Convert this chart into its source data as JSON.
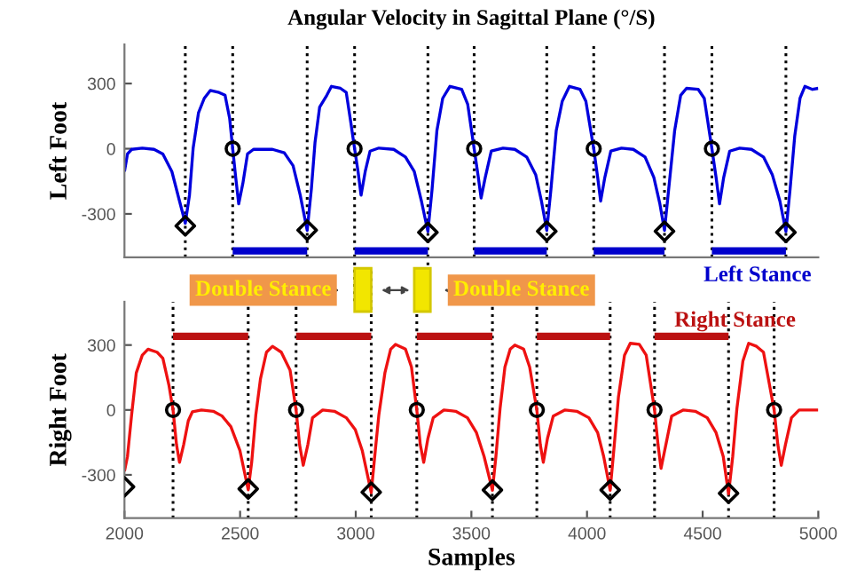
{
  "chart_data": [
    {
      "type": "line",
      "title": "Angular Velocity in Sagittal Plane (°/S)",
      "ylabel": "Left Foot",
      "xlim": [
        2000,
        5000
      ],
      "ylim": [
        -500,
        480
      ],
      "yticks": [
        -300,
        0,
        300
      ],
      "tick_labels": "y",
      "legend": false,
      "grid": false,
      "annotations": [
        "Double Stance",
        "Double Stance"
      ],
      "series": [
        {
          "type": "line",
          "color": "#0000dd",
          "x": [
            2000,
            2013,
            2031,
            2077,
            2128,
            2166,
            2205,
            2238,
            2263,
            2281,
            2297,
            2320,
            2345,
            2371,
            2409,
            2435,
            2455,
            2468,
            2481,
            2494,
            2512,
            2532,
            2558,
            2640,
            2691,
            2729,
            2760,
            2790,
            2808,
            2824,
            2844,
            2875,
            2895,
            2934,
            2959,
            2980,
            2995,
            3010,
            3023,
            3041,
            3062,
            3100,
            3164,
            3215,
            3253,
            3284,
            3312,
            3330,
            3351,
            3376,
            3407,
            3458,
            3484,
            3512,
            3530,
            3542,
            3560,
            3586,
            3637,
            3688,
            3739,
            3778,
            3803,
            3826,
            3844,
            3867,
            3893,
            3924,
            3970,
            3995,
            4029,
            4046,
            4059,
            4077,
            4103,
            4149,
            4200,
            4251,
            4289,
            4315,
            4335,
            4353,
            4379,
            4405,
            4430,
            4481,
            4507,
            4540,
            4558,
            4573,
            4591,
            4617,
            4660,
            4711,
            4763,
            4801,
            4834,
            4860,
            4878,
            4898,
            4921,
            4942,
            4975,
            5000
          ],
          "values": [
            -105,
            -24,
            -3,
            3,
            -3,
            -24,
            -105,
            -241,
            -343,
            -214,
            3,
            165,
            232,
            268,
            259,
            246,
            138,
            0,
            -132,
            -254,
            -159,
            -24,
            -3,
            -3,
            -19,
            -78,
            -214,
            -376,
            -187,
            30,
            192,
            246,
            287,
            278,
            259,
            111,
            0,
            -105,
            -214,
            -105,
            -11,
            3,
            -3,
            -38,
            -105,
            -241,
            -381,
            -187,
            84,
            232,
            287,
            273,
            205,
            0,
            -132,
            -227,
            -132,
            -11,
            3,
            -3,
            -38,
            -119,
            -241,
            -376,
            -187,
            84,
            219,
            287,
            273,
            219,
            0,
            -132,
            -241,
            -132,
            -11,
            3,
            -3,
            -38,
            -132,
            -254,
            -376,
            -187,
            84,
            246,
            278,
            273,
            232,
            0,
            -132,
            -254,
            -132,
            -11,
            3,
            -3,
            -38,
            -119,
            -241,
            -381,
            -187,
            57,
            232,
            287,
            273,
            278
          ]
        },
        {
          "type": "scatter",
          "marker": "diamond",
          "color": "#000000",
          "x": [
            2263,
            2790,
            3312,
            3826,
            4335,
            4860
          ],
          "values": [
            -355,
            -375,
            -385,
            -380,
            -380,
            -385
          ]
        },
        {
          "type": "scatter",
          "marker": "circle",
          "color": "#000000",
          "x": [
            2468,
            2995,
            3512,
            4029,
            4540
          ],
          "values": [
            0,
            0,
            0,
            0,
            0
          ]
        },
        {
          "type": "line",
          "name": "Left Stance",
          "color": "#0000cc",
          "x": [
            2468,
            2790,
            null,
            2995,
            3312,
            null,
            3512,
            3826,
            null,
            4029,
            4335,
            null,
            4540,
            4860
          ],
          "values": [
            -470,
            -470,
            null,
            -470,
            -470,
            null,
            -470,
            -470,
            null,
            -470,
            -470,
            null,
            -470,
            -470
          ]
        }
      ],
      "ref_lines": [
        {
          "axis": "x",
          "value": 2263,
          "color": "#000000",
          "line_style": "dotted"
        },
        {
          "axis": "x",
          "value": 2468,
          "color": "#000000",
          "line_style": "dotted"
        },
        {
          "axis": "x",
          "value": 2790,
          "color": "#000000",
          "line_style": "dotted"
        },
        {
          "axis": "x",
          "value": 2995,
          "color": "#000000",
          "line_style": "dotted"
        },
        {
          "axis": "x",
          "value": 3312,
          "color": "#000000",
          "line_style": "dotted"
        },
        {
          "axis": "x",
          "value": 3512,
          "color": "#000000",
          "line_style": "dotted"
        },
        {
          "axis": "x",
          "value": 3826,
          "color": "#000000",
          "line_style": "dotted"
        },
        {
          "axis": "x",
          "value": 4029,
          "color": "#000000",
          "line_style": "dotted"
        },
        {
          "axis": "x",
          "value": 4335,
          "color": "#000000",
          "line_style": "dotted"
        },
        {
          "axis": "x",
          "value": 4540,
          "color": "#000000",
          "line_style": "dotted"
        },
        {
          "axis": "x",
          "value": 4860,
          "color": "#000000",
          "line_style": "dotted"
        }
      ]
    },
    {
      "type": "line",
      "ylabel": "Right Foot",
      "xlabel": "Samples",
      "xlim": [
        2000,
        5000
      ],
      "xticks": [
        2000,
        2500,
        3000,
        3500,
        4000,
        4500,
        5000
      ],
      "ylim": [
        -500,
        500
      ],
      "yticks": [
        -300,
        0,
        300
      ],
      "legend": false,
      "grid": false,
      "series": [
        {
          "type": "line",
          "color": "#ee1111",
          "x": [
            2000,
            2013,
            2031,
            2051,
            2077,
            2102,
            2141,
            2166,
            2192,
            2210,
            2225,
            2238,
            2256,
            2276,
            2294,
            2333,
            2384,
            2422,
            2460,
            2499,
            2535,
            2550,
            2568,
            2588,
            2614,
            2640,
            2678,
            2716,
            2742,
            2757,
            2773,
            2793,
            2813,
            2857,
            2908,
            2959,
            2998,
            3028,
            3067,
            3082,
            3100,
            3126,
            3151,
            3172,
            3215,
            3241,
            3264,
            3279,
            3294,
            3312,
            3335,
            3381,
            3432,
            3483,
            3522,
            3555,
            3591,
            3606,
            3624,
            3645,
            3668,
            3688,
            3726,
            3752,
            3783,
            3798,
            3811,
            3829,
            3854,
            3905,
            3956,
            4008,
            4046,
            4072,
            4100,
            4118,
            4136,
            4162,
            4187,
            4226,
            4256,
            4292,
            4307,
            4320,
            4341,
            4366,
            4417,
            4468,
            4520,
            4558,
            4589,
            4612,
            4630,
            4648,
            4674,
            4699,
            4733,
            4763,
            4789,
            4809,
            4825,
            4840,
            4858,
            4884,
            4917,
            5000
          ],
          "values": [
            -283,
            -215,
            -22,
            171,
            253,
            281,
            267,
            239,
            116,
            0,
            -160,
            -242,
            -160,
            -50,
            -8,
            0,
            -6,
            -28,
            -77,
            -187,
            -369,
            -242,
            -22,
            143,
            267,
            294,
            267,
            184,
            0,
            -160,
            -256,
            -160,
            -36,
            0,
            -6,
            -36,
            -91,
            -187,
            -382,
            -215,
            -22,
            171,
            281,
            303,
            281,
            198,
            0,
            -160,
            -242,
            -132,
            -36,
            0,
            -6,
            -36,
            -105,
            -215,
            -371,
            -215,
            6,
            198,
            281,
            300,
            281,
            198,
            0,
            -160,
            -242,
            -132,
            -28,
            0,
            -6,
            -36,
            -105,
            -215,
            -371,
            -160,
            61,
            253,
            308,
            303,
            253,
            0,
            -160,
            -270,
            -160,
            -28,
            0,
            -6,
            -36,
            -105,
            -215,
            -388,
            -215,
            6,
            226,
            308,
            294,
            267,
            116,
            0,
            -160,
            -256,
            -160,
            -36,
            0,
            0
          ]
        },
        {
          "type": "scatter",
          "marker": "diamond",
          "color": "#000000",
          "x": [
            2000,
            2535,
            3067,
            3591,
            4100,
            4612
          ],
          "values": [
            -355,
            -365,
            -380,
            -370,
            -370,
            -385
          ]
        },
        {
          "type": "scatter",
          "marker": "circle",
          "color": "#000000",
          "x": [
            2210,
            2742,
            3264,
            3783,
            4292,
            4809
          ],
          "values": [
            0,
            0,
            0,
            0,
            0,
            0
          ]
        },
        {
          "type": "line",
          "name": "Right Stance",
          "color": "#bb1111",
          "x": [
            2210,
            2535,
            null,
            2742,
            3067,
            null,
            3264,
            3591,
            null,
            3783,
            4100,
            null,
            4292,
            4612
          ],
          "values": [
            340,
            340,
            null,
            340,
            340,
            null,
            340,
            340,
            null,
            340,
            340,
            null,
            340,
            340
          ]
        }
      ],
      "ref_lines": [
        {
          "axis": "x",
          "value": 2210,
          "color": "#000000",
          "line_style": "dotted"
        },
        {
          "axis": "x",
          "value": 2535,
          "color": "#000000",
          "line_style": "dotted"
        },
        {
          "axis": "x",
          "value": 2742,
          "color": "#000000",
          "line_style": "dotted"
        },
        {
          "axis": "x",
          "value": 3067,
          "color": "#000000",
          "line_style": "dotted"
        },
        {
          "axis": "x",
          "value": 3264,
          "color": "#000000",
          "line_style": "dotted"
        },
        {
          "axis": "x",
          "value": 3591,
          "color": "#000000",
          "line_style": "dotted"
        },
        {
          "axis": "x",
          "value": 3783,
          "color": "#000000",
          "line_style": "dotted"
        },
        {
          "axis": "x",
          "value": 4100,
          "color": "#000000",
          "line_style": "dotted"
        },
        {
          "axis": "x",
          "value": 4292,
          "color": "#000000",
          "line_style": "dotted"
        },
        {
          "axis": "x",
          "value": 4612,
          "color": "#000000",
          "line_style": "dotted"
        },
        {
          "axis": "x",
          "value": 4809,
          "color": "#000000",
          "line_style": "dotted"
        }
      ]
    }
  ]
}
